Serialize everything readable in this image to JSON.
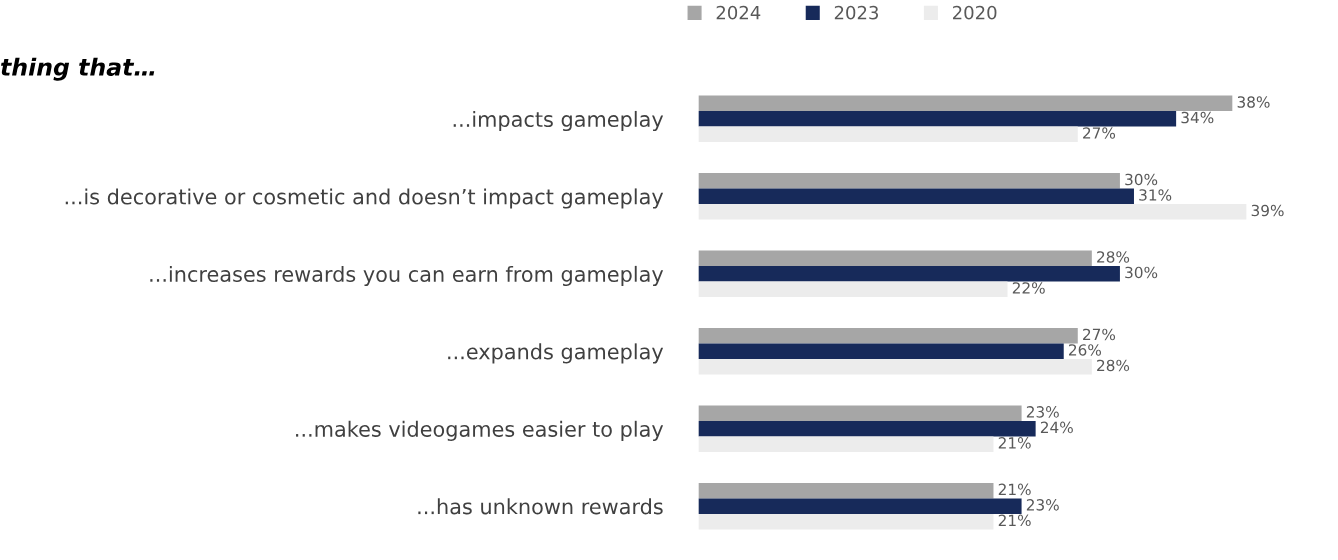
{
  "chart_data": {
    "type": "bar",
    "orientation": "horizontal",
    "title": "thing that…",
    "categories": [
      "...impacts gameplay",
      "...is decorative or cosmetic and doesn’t impact gameplay",
      "...increases rewards you can earn from gameplay",
      "...expands gameplay",
      "...makes videogames easier to play",
      "...has unknown rewards"
    ],
    "series": [
      {
        "name": "2024",
        "color": "#a6a6a6",
        "values": [
          38,
          30,
          28,
          27,
          23,
          21
        ],
        "value_labels": [
          "38%",
          "30%",
          "28%",
          "27%",
          "23%",
          "21%"
        ]
      },
      {
        "name": "2023",
        "color": "#172a5a",
        "values": [
          34,
          31,
          30,
          26,
          24,
          23
        ],
        "value_labels": [
          "34%",
          "31%",
          "30%",
          "26%",
          "24%",
          "23%"
        ]
      },
      {
        "name": "2020",
        "color": "#ececec",
        "values": [
          27,
          39,
          22,
          28,
          21,
          21
        ],
        "value_labels": [
          "27%",
          "39%",
          "22%",
          "28%",
          "21%",
          "21%"
        ]
      }
    ],
    "legend": "top",
    "grid": false
  }
}
